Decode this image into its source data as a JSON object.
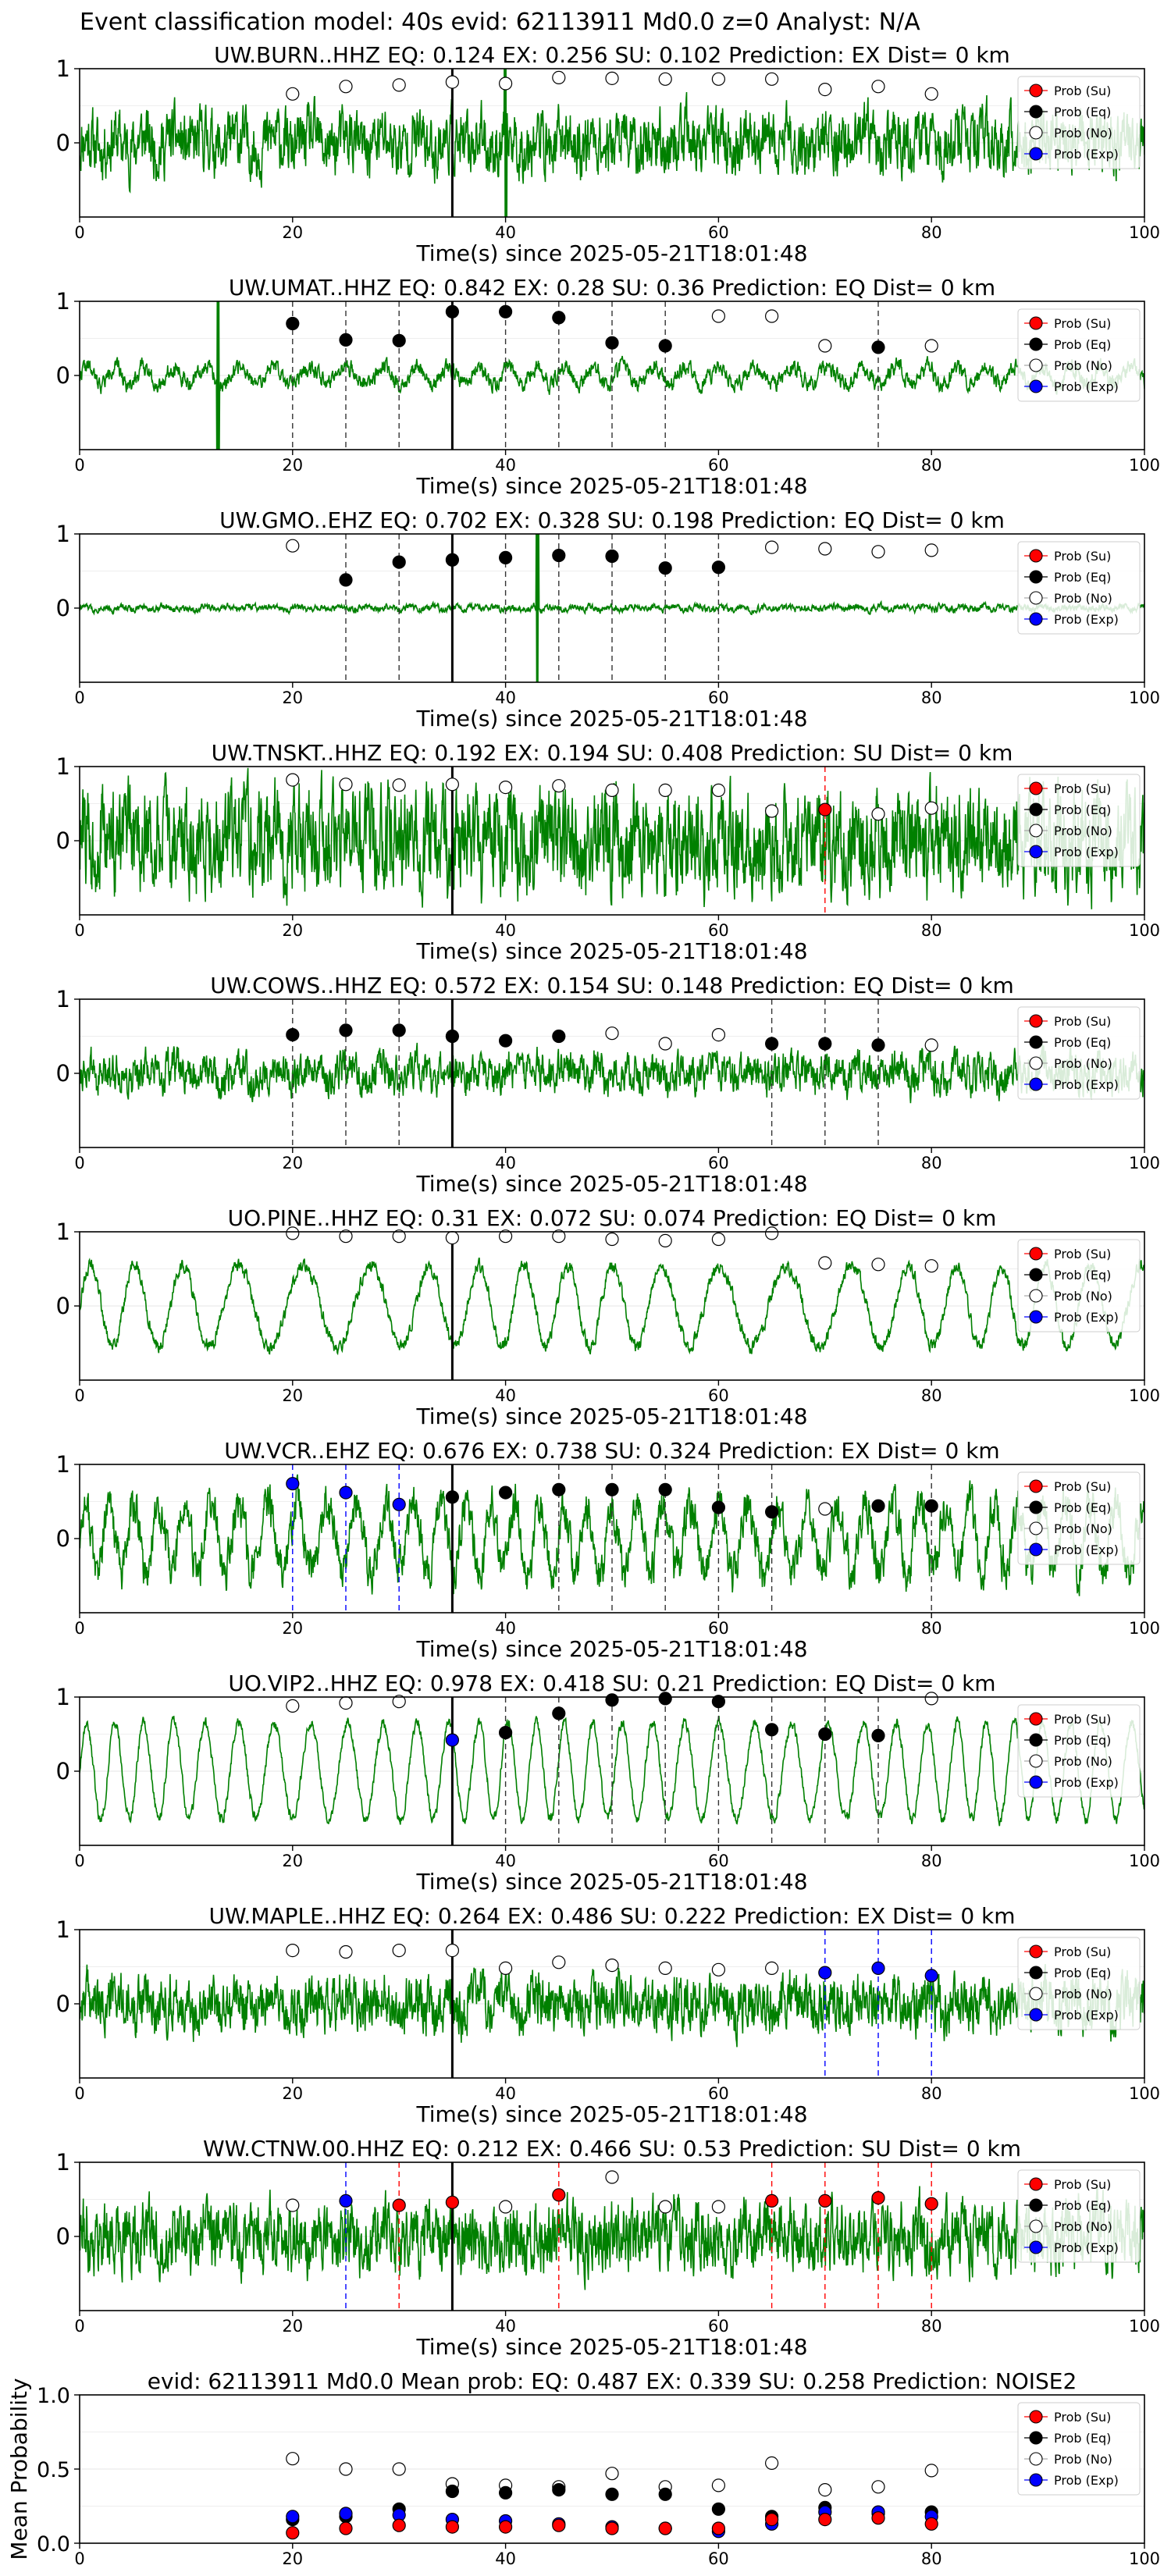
{
  "suptitle": "Event classification model: 40s evid: 62113911 Md0.0 z=0 Analyst: N/A",
  "colors": {
    "waveform": "#008000",
    "su": "#ff0000",
    "eq": "#000000",
    "no": "#ffffff",
    "exp": "#0000ff",
    "arrival": "#000000"
  },
  "legend": {
    "placement": "top-right",
    "entries": [
      "Prob (Su)",
      "Prob (Eq)",
      "Prob (No)",
      "Prob (Exp)"
    ]
  },
  "chart_data": [
    {
      "type": "line",
      "title": "UW.BURN..HHZ   EQ: 0.124   EX: 0.256   SU: 0.102   Prediction: EX    Dist= 0 km",
      "xlabel": "Time(s) since 2025-05-21T18:01:48",
      "xlim": [
        0,
        100
      ],
      "ylim": [
        -1,
        1
      ],
      "xticks": [
        0,
        20,
        40,
        60,
        80,
        100
      ],
      "yticks": [
        0,
        1
      ],
      "arrival": 35,
      "waveform": {
        "noise": 0.45,
        "osc": 0.08,
        "period": 3,
        "seed": 11,
        "spike_at": 40
      },
      "x": [
        20,
        25,
        30,
        35,
        40,
        45,
        50,
        55,
        60,
        65,
        70,
        75,
        80
      ],
      "predictions": [
        "No",
        "No",
        "No",
        "No",
        "No",
        "No",
        "No",
        "No",
        "No",
        "No",
        "No",
        "No",
        "No"
      ],
      "probabilities": [
        0.66,
        0.76,
        0.78,
        0.82,
        0.8,
        0.88,
        0.87,
        0.86,
        0.86,
        0.86,
        0.72,
        0.76,
        0.66
      ],
      "dashed": [],
      "grid": true
    },
    {
      "type": "line",
      "title": "UW.UMAT..HHZ   EQ: 0.842  EX: 0.28  SU: 0.36   Prediction: EQ    Dist= 0 km",
      "xlabel": "Time(s) since 2025-05-21T18:01:48",
      "xlim": [
        0,
        100
      ],
      "ylim": [
        -1,
        1
      ],
      "xticks": [
        0,
        20,
        40,
        60,
        80,
        100
      ],
      "yticks": [
        0,
        1
      ],
      "arrival": 35,
      "waveform": {
        "noise": 0.12,
        "osc": 0.12,
        "period": 3,
        "seed": 22,
        "spike_at": 13
      },
      "x": [
        20,
        25,
        30,
        35,
        40,
        45,
        50,
        55,
        60,
        65,
        70,
        75,
        80
      ],
      "predictions": [
        "Eq",
        "Eq",
        "Eq",
        "Eq",
        "Eq",
        "Eq",
        "Eq",
        "Eq",
        "No",
        "No",
        "No",
        "Eq",
        "No"
      ],
      "probabilities": [
        0.7,
        0.48,
        0.47,
        0.86,
        0.86,
        0.78,
        0.44,
        0.4,
        0.8,
        0.8,
        0.4,
        0.38,
        0.4
      ],
      "dashed": [
        {
          "x": 20,
          "color": "eq"
        },
        {
          "x": 25,
          "color": "eq"
        },
        {
          "x": 30,
          "color": "eq"
        },
        {
          "x": 40,
          "color": "eq"
        },
        {
          "x": 45,
          "color": "eq"
        },
        {
          "x": 50,
          "color": "eq"
        },
        {
          "x": 55,
          "color": "eq"
        },
        {
          "x": 75,
          "color": "eq"
        }
      ],
      "grid": true
    },
    {
      "type": "line",
      "title": "UW.GMO..EHZ   EQ: 0.702  EX: 0.328  SU: 0.198   Prediction: EQ    Dist= 0 km",
      "xlabel": "Time(s) since 2025-05-21T18:01:48",
      "xlim": [
        0,
        100
      ],
      "ylim": [
        -1,
        1
      ],
      "xticks": [
        0,
        20,
        40,
        60,
        80,
        100
      ],
      "yticks": [
        0,
        1
      ],
      "arrival": 35,
      "waveform": {
        "noise": 0.05,
        "osc": 0.02,
        "period": 2,
        "seed": 33,
        "spike_at": 43
      },
      "x": [
        20,
        25,
        30,
        35,
        40,
        45,
        50,
        55,
        60,
        65,
        70,
        75,
        80
      ],
      "predictions": [
        "No",
        "Eq",
        "Eq",
        "Eq",
        "Eq",
        "Eq",
        "Eq",
        "Eq",
        "Eq",
        "No",
        "No",
        "No",
        "No"
      ],
      "probabilities": [
        0.84,
        0.38,
        0.62,
        0.65,
        0.68,
        0.71,
        0.7,
        0.54,
        0.55,
        0.82,
        0.8,
        0.76,
        0.78
      ],
      "dashed": [
        {
          "x": 25,
          "color": "eq"
        },
        {
          "x": 30,
          "color": "eq"
        },
        {
          "x": 40,
          "color": "eq"
        },
        {
          "x": 45,
          "color": "eq"
        },
        {
          "x": 50,
          "color": "eq"
        },
        {
          "x": 55,
          "color": "eq"
        },
        {
          "x": 60,
          "color": "eq"
        }
      ],
      "grid": true
    },
    {
      "type": "line",
      "title": "UW.TNSKT..HHZ   EQ: 0.192  EX: 0.194  SU: 0.408   Prediction: SU    Dist= 0 km",
      "xlabel": "Time(s) since 2025-05-21T18:01:48",
      "xlim": [
        0,
        100
      ],
      "ylim": [
        -1,
        1
      ],
      "xticks": [
        0,
        20,
        40,
        60,
        80,
        100
      ],
      "yticks": [
        0,
        1
      ],
      "arrival": 35,
      "waveform": {
        "noise": 0.75,
        "osc": 0.05,
        "period": 2,
        "seed": 44,
        "spike_at": -1
      },
      "x": [
        20,
        25,
        30,
        35,
        40,
        45,
        50,
        55,
        60,
        65,
        70,
        75,
        80
      ],
      "predictions": [
        "No",
        "No",
        "No",
        "No",
        "No",
        "No",
        "No",
        "No",
        "No",
        "No",
        "Su",
        "No",
        "No"
      ],
      "probabilities": [
        0.82,
        0.76,
        0.75,
        0.76,
        0.72,
        0.74,
        0.68,
        0.68,
        0.68,
        0.4,
        0.42,
        0.36,
        0.44
      ],
      "dashed": [
        {
          "x": 70,
          "color": "su"
        }
      ],
      "grid": true
    },
    {
      "type": "line",
      "title": "UW.COWS..HHZ   EQ: 0.572  EX: 0.154  SU: 0.148   Prediction: EQ    Dist= 0 km",
      "xlabel": "Time(s) since 2025-05-21T18:01:48",
      "xlim": [
        0,
        100
      ],
      "ylim": [
        -1,
        1
      ],
      "xticks": [
        0,
        20,
        40,
        60,
        80,
        100
      ],
      "yticks": [
        0,
        1
      ],
      "arrival": 35,
      "waveform": {
        "noise": 0.28,
        "osc": 0.08,
        "period": 3,
        "seed": 55,
        "spike_at": -1
      },
      "x": [
        20,
        25,
        30,
        35,
        40,
        45,
        50,
        55,
        60,
        65,
        70,
        75,
        80
      ],
      "predictions": [
        "Eq",
        "Eq",
        "Eq",
        "Eq",
        "Eq",
        "Eq",
        "No",
        "No",
        "No",
        "Eq",
        "Eq",
        "Eq",
        "No"
      ],
      "probabilities": [
        0.52,
        0.58,
        0.58,
        0.5,
        0.44,
        0.5,
        0.54,
        0.4,
        0.52,
        0.4,
        0.4,
        0.38,
        0.38
      ],
      "dashed": [
        {
          "x": 20,
          "color": "eq"
        },
        {
          "x": 25,
          "color": "eq"
        },
        {
          "x": 30,
          "color": "eq"
        },
        {
          "x": 65,
          "color": "eq"
        },
        {
          "x": 70,
          "color": "eq"
        },
        {
          "x": 75,
          "color": "eq"
        }
      ],
      "grid": true
    },
    {
      "type": "line",
      "title": "UO.PINE..HHZ   EQ: 0.31  EX: 0.072  SU: 0.074   Prediction: EQ    Dist= 0 km",
      "xlabel": "Time(s) since 2025-05-21T18:01:48",
      "xlim": [
        0,
        100
      ],
      "ylim": [
        -1,
        1
      ],
      "xticks": [
        0,
        20,
        40,
        60,
        80,
        100
      ],
      "yticks": [
        0,
        1
      ],
      "arrival": 35,
      "waveform": {
        "noise": 0.1,
        "osc": 0.55,
        "period": 5,
        "seed": 66,
        "spike_at": -1
      },
      "x": [
        20,
        25,
        30,
        35,
        40,
        45,
        50,
        55,
        60,
        65,
        70,
        75,
        80
      ],
      "predictions": [
        "No",
        "No",
        "No",
        "No",
        "No",
        "No",
        "No",
        "No",
        "No",
        "No",
        "No",
        "No",
        "No"
      ],
      "probabilities": [
        0.98,
        0.94,
        0.94,
        0.92,
        0.94,
        0.94,
        0.9,
        0.88,
        0.9,
        0.98,
        0.58,
        0.56,
        0.54
      ],
      "dashed": [],
      "grid": true
    },
    {
      "type": "line",
      "title": "UW.VCR..EHZ   EQ: 0.676  EX: 0.738  SU: 0.324   Prediction: EX    Dist= 0 km",
      "xlabel": "Time(s) since 2025-05-21T18:01:48",
      "xlim": [
        0,
        100
      ],
      "ylim": [
        -1,
        1
      ],
      "xticks": [
        0,
        20,
        40,
        60,
        80,
        100
      ],
      "yticks": [
        0,
        1
      ],
      "arrival": 35,
      "waveform": {
        "noise": 0.3,
        "osc": 0.45,
        "period": 2.5,
        "seed": 77,
        "spike_at": -1
      },
      "x": [
        20,
        25,
        30,
        35,
        40,
        45,
        50,
        55,
        60,
        65,
        70,
        75,
        80
      ],
      "predictions": [
        "Exp",
        "Exp",
        "Exp",
        "Eq",
        "Eq",
        "Eq",
        "Eq",
        "Eq",
        "Eq",
        "Eq",
        "No",
        "Eq",
        "Eq"
      ],
      "probabilities": [
        0.74,
        0.62,
        0.46,
        0.56,
        0.62,
        0.66,
        0.66,
        0.66,
        0.42,
        0.36,
        0.4,
        0.44,
        0.44
      ],
      "dashed": [
        {
          "x": 20,
          "color": "exp"
        },
        {
          "x": 25,
          "color": "exp"
        },
        {
          "x": 30,
          "color": "exp"
        },
        {
          "x": 45,
          "color": "eq"
        },
        {
          "x": 50,
          "color": "eq"
        },
        {
          "x": 55,
          "color": "eq"
        },
        {
          "x": 60,
          "color": "eq"
        },
        {
          "x": 65,
          "color": "eq"
        },
        {
          "x": 80,
          "color": "eq"
        }
      ],
      "grid": true
    },
    {
      "type": "line",
      "title": "UO.VIP2..HHZ   EQ: 0.978  EX: 0.418  SU: 0.21   Prediction: EQ    Dist= 0 km",
      "xlabel": "Time(s) since 2025-05-21T18:01:48",
      "xlim": [
        0,
        100
      ],
      "ylim": [
        -1,
        1
      ],
      "xticks": [
        0,
        20,
        40,
        60,
        80,
        100
      ],
      "yticks": [
        0,
        1
      ],
      "arrival": 35,
      "waveform": {
        "noise": 0.08,
        "osc": 0.65,
        "period": 3,
        "seed": 88,
        "spike_at": -1
      },
      "x": [
        20,
        25,
        30,
        35,
        40,
        45,
        50,
        55,
        60,
        65,
        70,
        75,
        80
      ],
      "predictions": [
        "No",
        "No",
        "No",
        "Exp",
        "Eq",
        "Eq",
        "Eq",
        "Eq",
        "Eq",
        "Eq",
        "Eq",
        "Eq",
        "No"
      ],
      "probabilities": [
        0.88,
        0.92,
        0.94,
        0.42,
        0.52,
        0.78,
        0.96,
        0.98,
        0.94,
        0.56,
        0.5,
        0.48,
        0.98
      ],
      "dashed": [
        {
          "x": 40,
          "color": "eq"
        },
        {
          "x": 45,
          "color": "eq"
        },
        {
          "x": 50,
          "color": "eq"
        },
        {
          "x": 55,
          "color": "eq"
        },
        {
          "x": 60,
          "color": "eq"
        },
        {
          "x": 65,
          "color": "eq"
        },
        {
          "x": 70,
          "color": "eq"
        },
        {
          "x": 75,
          "color": "eq"
        }
      ],
      "grid": true
    },
    {
      "type": "line",
      "title": "UW.MAPLE..HHZ   EQ: 0.264  EX: 0.486  SU: 0.222   Prediction: EX    Dist= 0 km",
      "xlabel": "Time(s) since 2025-05-21T18:01:48",
      "xlim": [
        0,
        100
      ],
      "ylim": [
        -1,
        1
      ],
      "xticks": [
        0,
        20,
        40,
        60,
        80,
        100
      ],
      "yticks": [
        0,
        1
      ],
      "arrival": 35,
      "waveform": {
        "noise": 0.4,
        "osc": 0.1,
        "period": 3,
        "seed": 99,
        "spike_at": -1
      },
      "x": [
        20,
        25,
        30,
        35,
        40,
        45,
        50,
        55,
        60,
        65,
        70,
        75,
        80
      ],
      "predictions": [
        "No",
        "No",
        "No",
        "No",
        "No",
        "No",
        "No",
        "No",
        "No",
        "No",
        "Exp",
        "Exp",
        "Exp"
      ],
      "probabilities": [
        0.72,
        0.7,
        0.72,
        0.72,
        0.48,
        0.56,
        0.52,
        0.48,
        0.46,
        0.48,
        0.42,
        0.48,
        0.38
      ],
      "dashed": [
        {
          "x": 70,
          "color": "exp"
        },
        {
          "x": 75,
          "color": "exp"
        },
        {
          "x": 80,
          "color": "exp"
        }
      ],
      "grid": true
    },
    {
      "type": "line",
      "title": "WW.CTNW.00.HHZ   EQ: 0.212  EX: 0.466  SU: 0.53   Prediction: SU    Dist= 0 km",
      "xlabel": "Time(s) since 2025-05-21T18:01:48",
      "xlim": [
        0,
        100
      ],
      "ylim": [
        -1,
        1
      ],
      "xticks": [
        0,
        20,
        40,
        60,
        80,
        100
      ],
      "yticks": [
        0,
        1
      ],
      "arrival": 35,
      "waveform": {
        "noise": 0.5,
        "osc": 0.06,
        "period": 2,
        "seed": 111,
        "spike_at": -1
      },
      "x": [
        20,
        25,
        30,
        35,
        40,
        45,
        50,
        55,
        60,
        65,
        70,
        75,
        80
      ],
      "predictions": [
        "No",
        "Exp",
        "Su",
        "Su",
        "No",
        "Su",
        "No",
        "No",
        "No",
        "Su",
        "Su",
        "Su",
        "Su"
      ],
      "probabilities": [
        0.42,
        0.48,
        0.42,
        0.46,
        0.4,
        0.56,
        0.8,
        0.4,
        0.4,
        0.48,
        0.48,
        0.52,
        0.44
      ],
      "dashed": [
        {
          "x": 25,
          "color": "exp"
        },
        {
          "x": 30,
          "color": "su"
        },
        {
          "x": 45,
          "color": "su"
        },
        {
          "x": 65,
          "color": "su"
        },
        {
          "x": 70,
          "color": "su"
        },
        {
          "x": 75,
          "color": "su"
        },
        {
          "x": 80,
          "color": "su"
        }
      ],
      "grid": true
    },
    {
      "type": "scatter",
      "title": "evid: 62113911   Md0.0   Mean prob:   EQ: 0.487  EX: 0.339  SU: 0.258   Prediction: NOISE2",
      "xlabel": "",
      "ylabel": "Mean Probability",
      "xlim": [
        0,
        100
      ],
      "ylim": [
        0,
        1
      ],
      "xticks": [
        0,
        20,
        40,
        60,
        80,
        100
      ],
      "yticks": [
        0.0,
        0.5,
        1.0
      ],
      "ytick_labels": [
        "0.0",
        "0.5",
        "1.0"
      ],
      "x": [
        20,
        25,
        30,
        35,
        40,
        45,
        50,
        55,
        60,
        65,
        70,
        75,
        80
      ],
      "series": [
        {
          "name": "Prob (No)",
          "key": "no",
          "values": [
            0.57,
            0.5,
            0.5,
            0.4,
            0.39,
            0.38,
            0.47,
            0.38,
            0.39,
            0.54,
            0.36,
            0.38,
            0.49
          ]
        },
        {
          "name": "Prob (Eq)",
          "key": "eq",
          "values": [
            0.16,
            0.18,
            0.23,
            0.35,
            0.34,
            0.36,
            0.33,
            0.33,
            0.23,
            0.18,
            0.24,
            0.2,
            0.21
          ]
        },
        {
          "name": "Prob (Exp)",
          "key": "exp",
          "values": [
            0.18,
            0.2,
            0.19,
            0.16,
            0.15,
            0.13,
            0.11,
            0.1,
            0.08,
            0.13,
            0.21,
            0.21,
            0.18
          ]
        },
        {
          "name": "Prob (Su)",
          "key": "su",
          "values": [
            0.07,
            0.1,
            0.12,
            0.11,
            0.11,
            0.12,
            0.1,
            0.1,
            0.1,
            0.16,
            0.16,
            0.17,
            0.13
          ]
        }
      ],
      "grid": true
    }
  ]
}
